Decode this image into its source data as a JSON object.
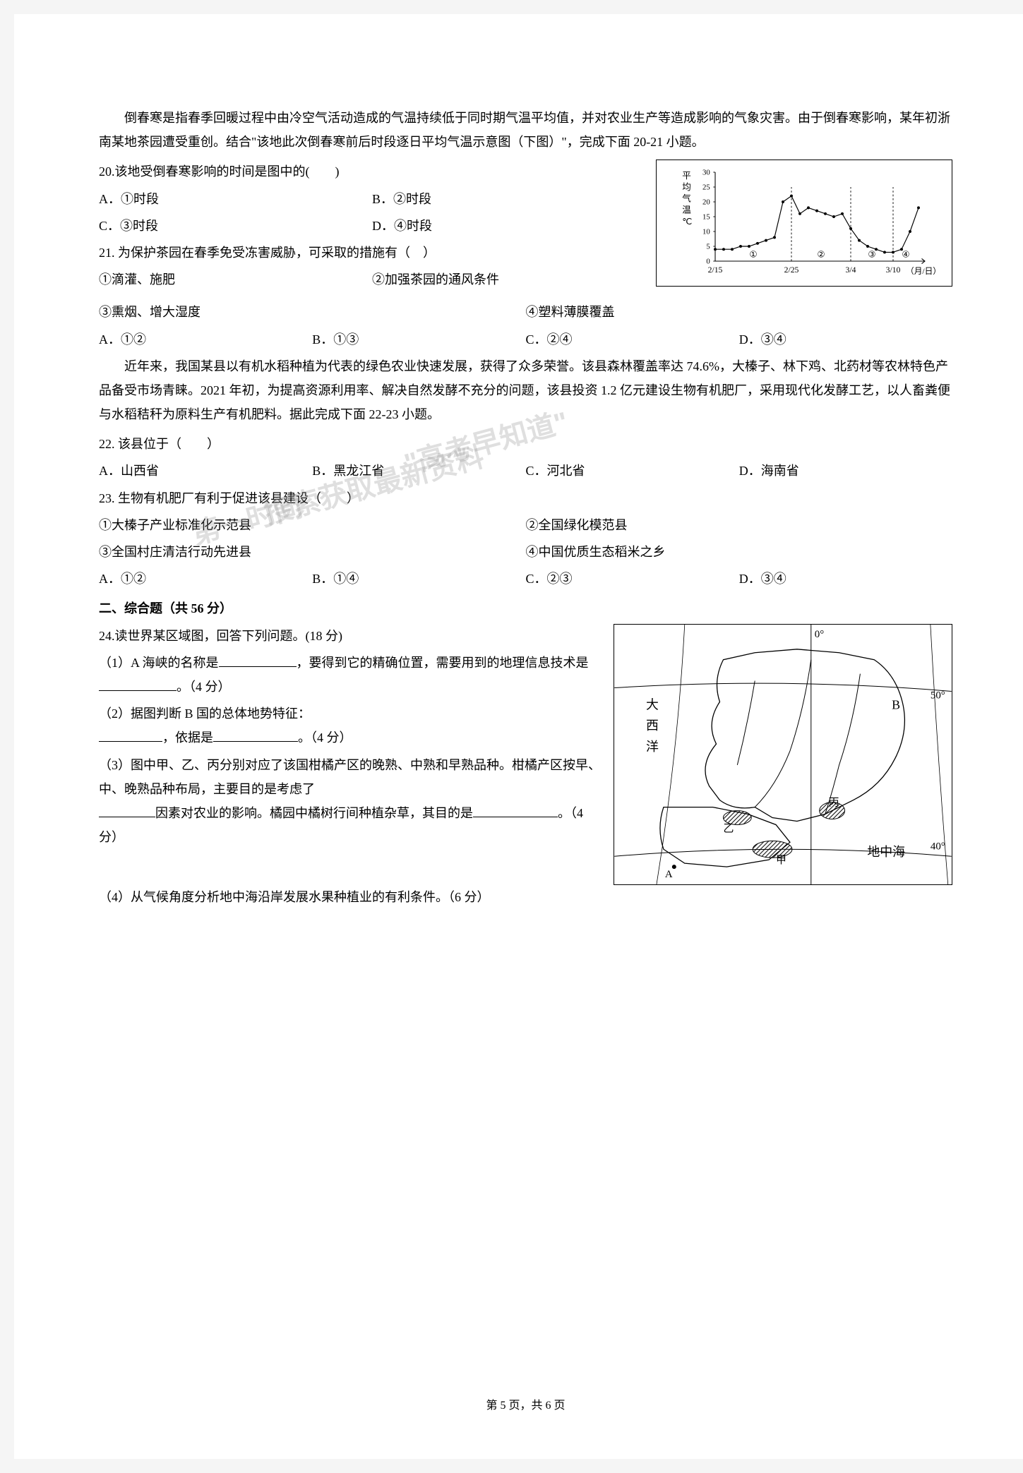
{
  "intro1": "倒春寒是指春季回暖过程中由冷空气活动造成的气温持续低于同时期气温平均值，并对农业生产等造成影响的气象灾害。由于倒春寒影响，某年初浙南某地茶园遭受重创。结合\"该地此次倒春寒前后时段逐日平均气温示意图（下图）\"，完成下面 20-21 小题。",
  "q20": {
    "stem": "20.该地受倒春寒影响的时间是图中的(　　)",
    "optA": "A．①时段",
    "optB": "B．②时段",
    "optC": "C．③时段",
    "optD": "D．④时段"
  },
  "q21": {
    "stem": "21. 为保护茶园在春季免受冻害威胁，可采取的措施有（　）",
    "item1": "①滴灌、施肥",
    "item2": "②加强茶园的通风条件",
    "item3": "③熏烟、增大湿度",
    "item4": "④塑料薄膜覆盖",
    "optA": "A．①②",
    "optB": "B．①③",
    "optC": "C．②④",
    "optD": "D．③④"
  },
  "chart": {
    "ylabel_lines": [
      "平",
      "均",
      "气",
      "温",
      "℃"
    ],
    "yticks": [
      0,
      5,
      10,
      15,
      20,
      25,
      30
    ],
    "xticks": [
      "2/15",
      "2/25",
      "3/4",
      "3/10"
    ],
    "xlabel": "（月/日）",
    "segments": [
      "①",
      "②",
      "③",
      "④"
    ],
    "data_points": [
      [
        0,
        4
      ],
      [
        1,
        4
      ],
      [
        2,
        4
      ],
      [
        3,
        5
      ],
      [
        4,
        5
      ],
      [
        5,
        6
      ],
      [
        6,
        7
      ],
      [
        7,
        8
      ],
      [
        8,
        20
      ],
      [
        9,
        22
      ],
      [
        10,
        16
      ],
      [
        11,
        18
      ],
      [
        12,
        17
      ],
      [
        13,
        16
      ],
      [
        14,
        15
      ],
      [
        15,
        16
      ],
      [
        16,
        11
      ],
      [
        17,
        7
      ],
      [
        18,
        5
      ],
      [
        19,
        4
      ],
      [
        20,
        3
      ],
      [
        21,
        3
      ],
      [
        22,
        4
      ],
      [
        23,
        10
      ],
      [
        24,
        18
      ]
    ],
    "line_color": "#000000",
    "marker_color": "#000000",
    "bg_color": "#ffffff",
    "axis_color": "#000000"
  },
  "intro2": "近年来，我国某县以有机水稻种植为代表的绿色农业快速发展，获得了众多荣誉。该县森林覆盖率达 74.6%，大榛子、林下鸡、北药材等农林特色产品备受市场青睐。2021 年初，为提高资源利用率、解决自然发酵不充分的问题，该县投资 1.2 亿元建设生物有机肥厂，采用现代化发酵工艺，以人畜粪便与水稻秸秆为原料生产有机肥料。据此完成下面 22-23 小题。",
  "q22": {
    "stem": "22. 该县位于（　　）",
    "optA": "A．山西省",
    "optB": "B．黑龙江省",
    "optC": "C．河北省",
    "optD": "D．海南省"
  },
  "q23": {
    "stem": "23. 生物有机肥厂有利于促进该县建设（　　）",
    "item1": "①大榛子产业标准化示范县",
    "item2": "②全国绿化模范县",
    "item3": "③全国村庄清洁行动先进县",
    "item4": "④中国优质生态稻米之乡",
    "optA": "A．①②",
    "optB": "B．①④",
    "optC": "C．②③",
    "optD": "D．③④"
  },
  "section2_title": "二、综合题（共 56 分）",
  "q24": {
    "stem": "24.读世界某区域图，回答下列问题。(18 分)",
    "p1a": "（1）A 海峡的名称是",
    "p1b": "，要得到它的精确位置，需要用到的地理信息技术是",
    "p1c": "。（4 分）",
    "p2a": "（2）据图判断 B 国的总体地势特征：",
    "p2b": "，依据是",
    "p2c": "。（4 分）",
    "p3a": "（3）图中甲、乙、丙分别对应了该国柑橘产区的晚熟、中熟和早熟品种。柑橘产区按早、中、晚熟品种布局，主要目的是考虑了",
    "p3b": "因素对农业的影响。橘园中橘树行间种植杂草，其目的是",
    "p3c": "。（4 分）",
    "p4": "（4）从气候角度分析地中海沿岸发展水果种植业的有利条件。（6 分）"
  },
  "map": {
    "labels": {
      "atlantic_lines": [
        "大",
        "西",
        "洋"
      ],
      "country_B": "B",
      "med_sea": "地中海",
      "jia": "甲",
      "yi": "乙",
      "bing": "丙",
      "A": "A",
      "lon0": "0°",
      "lat50": "50°",
      "lat40": "40°"
    },
    "border_color": "#000000",
    "bg_color": "#ffffff",
    "land_fill": "#ffffff",
    "hatch_color": "#000000"
  },
  "watermark_text1": "\"高考早知道\"",
  "watermark_text2": "搜索获取最新资料",
  "watermark_text3": "第一时间",
  "footer": "第 5 页，共 6 页"
}
